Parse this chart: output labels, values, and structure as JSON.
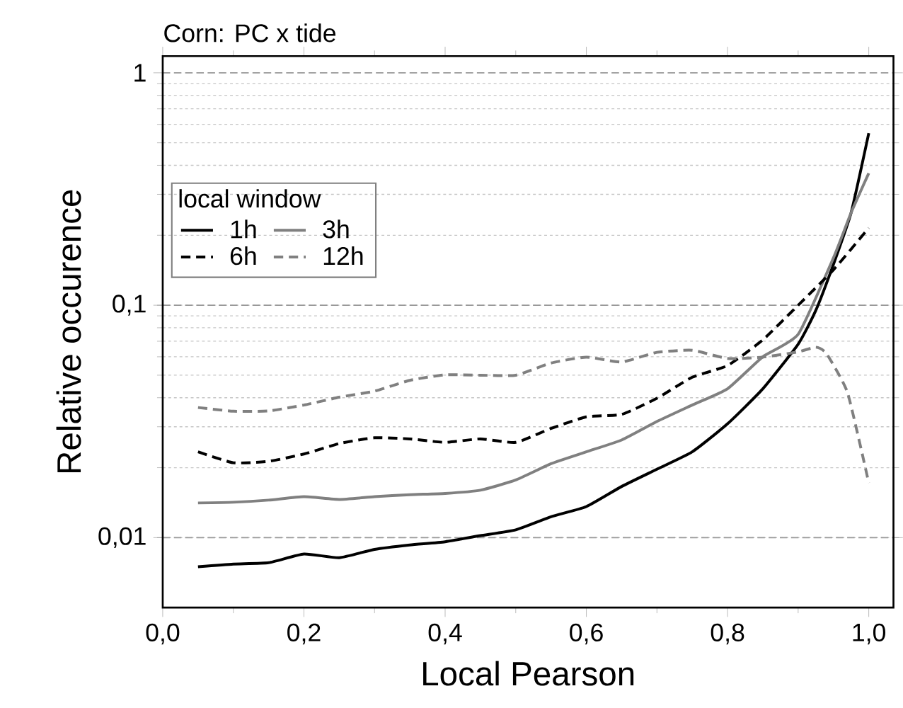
{
  "chart_data": {
    "type": "line",
    "title": "Corn: PC x tide",
    "xlabel": "Local Pearson",
    "ylabel": "Relative occurence",
    "legend_title": "local window",
    "legend": "left",
    "log": "y",
    "grid": "y",
    "xlim": [
      0,
      1.035
    ],
    "ylim": [
      0.005,
      1.18
    ],
    "xticks": [
      {
        "value": 0,
        "label": "0,0"
      },
      {
        "value": 0.2,
        "label": "0,2"
      },
      {
        "value": 0.4,
        "label": "0,4"
      },
      {
        "value": 0.6,
        "label": "0,6"
      },
      {
        "value": 0.8,
        "label": "0,8"
      },
      {
        "value": 1,
        "label": "1,0"
      }
    ],
    "yticks": [
      {
        "value": 0.01,
        "label": "0,01"
      },
      {
        "value": 0.1,
        "label": "0,1"
      },
      1
    ],
    "series": [
      {
        "name": "1h",
        "color": "#000000",
        "line_style": "solid",
        "x": [
          0.05,
          0.1,
          0.15,
          0.2,
          0.25,
          0.3,
          0.35,
          0.4,
          0.45,
          0.5,
          0.55,
          0.6,
          0.65,
          0.7,
          0.75,
          0.8,
          0.85,
          0.9,
          0.925,
          0.95,
          0.975,
          1.0
        ],
        "values": [
          0.0075,
          0.0077,
          0.0078,
          0.0085,
          0.0082,
          0.0089,
          0.0093,
          0.0096,
          0.0102,
          0.0108,
          0.0123,
          0.0136,
          0.0166,
          0.0197,
          0.0234,
          0.0309,
          0.0437,
          0.068,
          0.095,
          0.15,
          0.25,
          0.55
        ]
      },
      {
        "name": "3h",
        "color": "#808080",
        "line_style": "solid",
        "x": [
          0.05,
          0.1,
          0.15,
          0.2,
          0.25,
          0.3,
          0.35,
          0.4,
          0.45,
          0.5,
          0.55,
          0.6,
          0.65,
          0.7,
          0.75,
          0.8,
          0.85,
          0.9,
          0.95,
          0.975,
          1.0
        ],
        "values": [
          0.0141,
          0.0142,
          0.0145,
          0.015,
          0.0146,
          0.015,
          0.0153,
          0.0155,
          0.016,
          0.0177,
          0.0208,
          0.0234,
          0.0263,
          0.0316,
          0.0372,
          0.0437,
          0.06,
          0.075,
          0.16,
          0.25,
          0.37
        ]
      },
      {
        "name": "6h",
        "color": "#000000",
        "line_style": "dashed",
        "x": [
          0.05,
          0.1,
          0.15,
          0.2,
          0.25,
          0.3,
          0.35,
          0.4,
          0.45,
          0.5,
          0.55,
          0.6,
          0.65,
          0.7,
          0.75,
          0.8,
          0.85,
          0.9,
          0.95,
          1.0
        ],
        "values": [
          0.0234,
          0.021,
          0.0213,
          0.0229,
          0.0254,
          0.0269,
          0.0266,
          0.0257,
          0.0266,
          0.0257,
          0.0295,
          0.0331,
          0.0339,
          0.0398,
          0.049,
          0.055,
          0.071,
          0.1,
          0.142,
          0.215
        ]
      },
      {
        "name": "12h",
        "color": "#808080",
        "line_style": "dashed",
        "x": [
          0.05,
          0.1,
          0.15,
          0.2,
          0.25,
          0.3,
          0.35,
          0.4,
          0.45,
          0.5,
          0.55,
          0.6,
          0.65,
          0.7,
          0.75,
          0.8,
          0.85,
          0.9,
          0.925,
          0.94,
          0.97,
          1.0
        ],
        "values": [
          0.0363,
          0.035,
          0.0351,
          0.0372,
          0.0402,
          0.0427,
          0.0475,
          0.0502,
          0.05,
          0.05,
          0.0564,
          0.0598,
          0.057,
          0.0627,
          0.064,
          0.059,
          0.0598,
          0.063,
          0.066,
          0.062,
          0.042,
          0.0172
        ]
      }
    ]
  }
}
